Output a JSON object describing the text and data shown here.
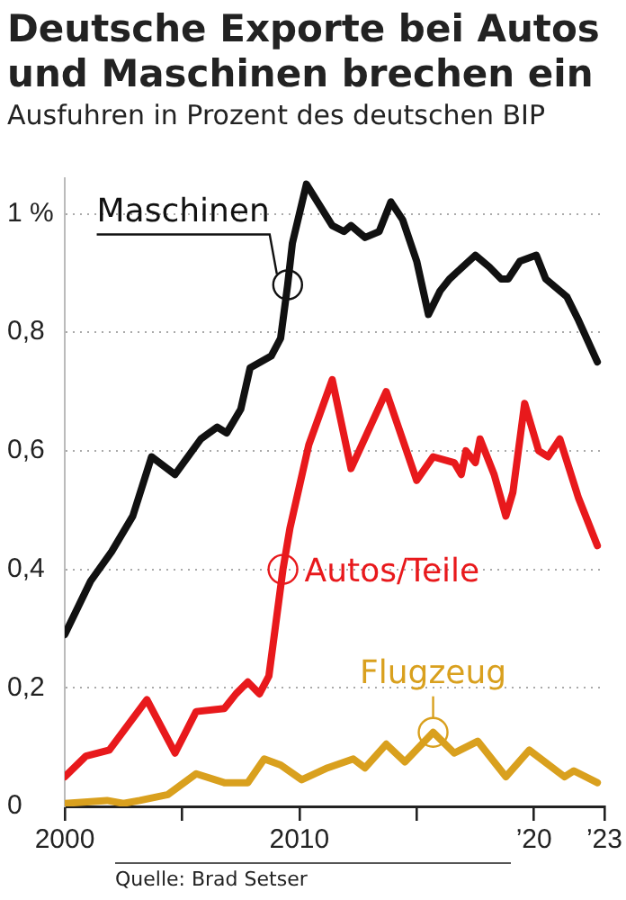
{
  "chart_data": {
    "type": "line",
    "title": "Deutsche Exporte bei Autos und Maschinen brechen ein",
    "subtitle": "Ausfuhren in Prozent des deutschen BIP",
    "annotations": [
      "Quelle: Brad Setser"
    ],
    "xlim": [
      2000,
      2023
    ],
    "xticks": [
      2000,
      {
        "value": 2005,
        "label": null
      },
      2010,
      {
        "value": 2015,
        "label": null
      },
      {
        "value": 2020,
        "label": "’20"
      },
      {
        "value": 2023,
        "label": "’23"
      }
    ],
    "ylim": [
      0,
      1.06
    ],
    "yticks": [
      0,
      {
        "value": 0.2,
        "label": "0,2"
      },
      {
        "value": 0.4,
        "label": "0,4"
      },
      {
        "value": 0.6,
        "label": "0,6"
      },
      {
        "value": 0.8,
        "label": "0,8"
      },
      {
        "value": 1,
        "label": "1 %"
      }
    ],
    "grid": "y",
    "legend": false,
    "series": [
      {
        "name": "Maschinen",
        "color": "#111111",
        "x": [
          2000,
          2001.1,
          2002,
          2002.9,
          2003.7,
          2004.7,
          2005.8,
          2006.5,
          2006.9,
          2007.5,
          2007.9,
          2008.8,
          2009.2,
          2009.5,
          2009.7,
          2010.3,
          2011.4,
          2011.9,
          2012.2,
          2012.8,
          2013.4,
          2013.9,
          2014.4,
          2015,
          2015.5,
          2016,
          2016.4,
          2017.5,
          2018.1,
          2018.6,
          2018.9,
          2019.4,
          2020.1,
          2020.5,
          2021.4,
          2021.9,
          2022.7
        ],
        "values": [
          0.29,
          0.38,
          0.43,
          0.49,
          0.59,
          0.56,
          0.62,
          0.64,
          0.63,
          0.67,
          0.74,
          0.76,
          0.79,
          0.88,
          0.95,
          1.05,
          0.98,
          0.97,
          0.98,
          0.96,
          0.97,
          1.02,
          0.99,
          0.92,
          0.83,
          0.87,
          0.89,
          0.93,
          0.91,
          0.89,
          0.89,
          0.92,
          0.93,
          0.89,
          0.86,
          0.82,
          0.75
        ]
      },
      {
        "name": "Autos/Teile",
        "color": "#e8191c",
        "x": [
          2000,
          2000.9,
          2001.9,
          2003.5,
          2004.7,
          2005.6,
          2006.8,
          2007.3,
          2007.8,
          2008.3,
          2008.7,
          2009.3,
          2009.6,
          2010.4,
          2011.4,
          2012.2,
          2013.7,
          2015,
          2015.7,
          2016.6,
          2016.9,
          2017.1,
          2017.5,
          2017.7,
          2018.3,
          2018.8,
          2019.1,
          2019.6,
          2020.2,
          2020.6,
          2021.1,
          2021.9,
          2022.7
        ],
        "values": [
          0.05,
          0.085,
          0.095,
          0.18,
          0.09,
          0.16,
          0.165,
          0.19,
          0.21,
          0.19,
          0.22,
          0.4,
          0.47,
          0.61,
          0.72,
          0.57,
          0.7,
          0.55,
          0.59,
          0.58,
          0.56,
          0.6,
          0.58,
          0.62,
          0.56,
          0.49,
          0.53,
          0.68,
          0.6,
          0.59,
          0.62,
          0.52,
          0.44
        ]
      },
      {
        "name": "Flugzeug",
        "color": "#d9a01e",
        "x": [
          2000,
          2001.8,
          2002.5,
          2003.2,
          2004.4,
          2005.6,
          2006.8,
          2007.8,
          2008.5,
          2009.2,
          2010.1,
          2011.2,
          2012.3,
          2012.8,
          2013.7,
          2014.5,
          2015.7,
          2016.6,
          2017.6,
          2018.8,
          2019.8,
          2021.3,
          2021.7,
          2022.7
        ],
        "values": [
          0.005,
          0.01,
          0.005,
          0.01,
          0.02,
          0.055,
          0.04,
          0.04,
          0.08,
          0.07,
          0.045,
          0.065,
          0.08,
          0.065,
          0.105,
          0.075,
          0.125,
          0.09,
          0.11,
          0.05,
          0.095,
          0.05,
          0.06,
          0.04
        ]
      }
    ]
  }
}
